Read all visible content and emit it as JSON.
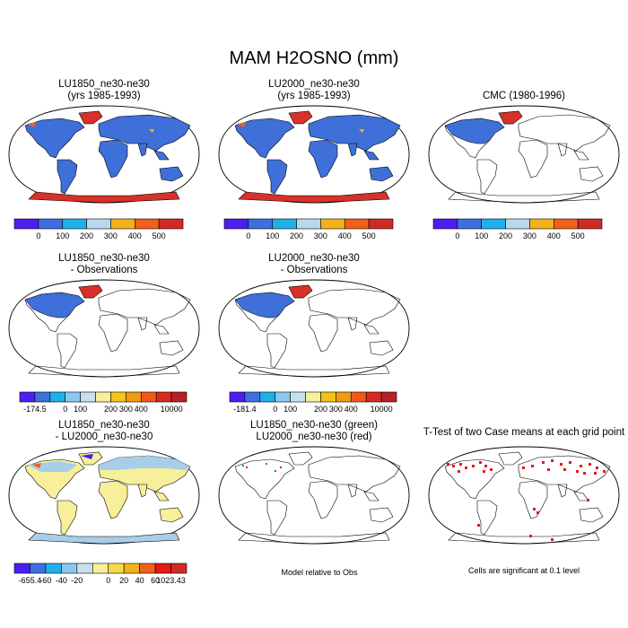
{
  "title": "MAM H2OSNO (mm)",
  "colors": {
    "map_fill_base": "#3f6fd8",
    "antarctic_red": "#d8302a",
    "diff_yellow": "#f7ef9a",
    "diff_lightblue": "#a8cde8",
    "signif_red": "#e8181c",
    "green": "#10a030"
  },
  "panels": [
    {
      "id": "lu1850",
      "title_lines": [
        "LU1850_ne30-ne30",
        "(yrs 1985-1993)"
      ],
      "fill": "full-blue"
    },
    {
      "id": "lu2000",
      "title_lines": [
        "LU2000_ne30-ne30",
        "(yrs 1985-1993)"
      ],
      "fill": "full-blue"
    },
    {
      "id": "cmc",
      "title_lines": [
        "CMC (1980-1996)"
      ],
      "fill": "na-blue"
    },
    {
      "id": "lu1850-obs",
      "title_lines": [
        "LU1850_ne30-ne30",
        "- Observations"
      ],
      "fill": "na-blue"
    },
    {
      "id": "lu2000-obs",
      "title_lines": [
        "LU2000_ne30-ne30",
        "- Observations"
      ],
      "fill": "na-blue"
    },
    {
      "id": "diff",
      "title_lines": [
        "LU1850_ne30-ne30",
        "- LU2000_ne30-ne30"
      ],
      "fill": "yellow"
    },
    {
      "id": "rel",
      "title_lines": [
        "LU1850_ne30-ne30 (green)",
        "LU2000_ne30-ne30 (red)"
      ],
      "fill": "outline"
    },
    {
      "id": "ttest",
      "title_lines": [
        "T-Test of two Case means at each grid point"
      ],
      "fill": "dots"
    }
  ],
  "colorbars": {
    "abs": {
      "colors": [
        "#4a1ff0",
        "#3d6fe0",
        "#1fb0e8",
        "#b8d8ee",
        "#f2b21a",
        "#f06018",
        "#d02a26"
      ],
      "labels": [
        "0",
        "100",
        "200",
        "300",
        "400",
        "500"
      ]
    },
    "obs1": {
      "colors": [
        "#4a1ff0",
        "#3d6fe0",
        "#1fb0e8",
        "#8cc8ee",
        "#c8e0ee",
        "#f7ef9a",
        "#f2c41a",
        "#f09a18",
        "#f05a18",
        "#d82a20",
        "#b82028"
      ],
      "labels": [
        "-174.5",
        "0",
        "100",
        "200",
        "300",
        "400",
        "10000"
      ]
    },
    "obs2": {
      "colors": [
        "#4a1ff0",
        "#3d6fe0",
        "#1fb0e8",
        "#8cc8ee",
        "#c8e0ee",
        "#f7ef9a",
        "#f2c41a",
        "#f09a18",
        "#f05a18",
        "#d82a20",
        "#b82028"
      ],
      "labels": [
        "-181.4",
        "0",
        "100",
        "200",
        "300",
        "400",
        "10000"
      ]
    },
    "diff": {
      "colors": [
        "#4a1ff0",
        "#3d6fe0",
        "#1fb0e8",
        "#8cc8ee",
        "#c8e0ee",
        "#f7ef9a",
        "#f6d84a",
        "#f2b21a",
        "#f06018",
        "#e81818",
        "#d02a26"
      ],
      "labels": [
        "-655.4",
        "-60",
        "-40",
        "-20",
        "0",
        "20",
        "40",
        "60",
        "1023.43"
      ]
    }
  },
  "notes": {
    "rel": "Model relative to Obs",
    "ttest": "Cells are significant at 0.1 level"
  }
}
